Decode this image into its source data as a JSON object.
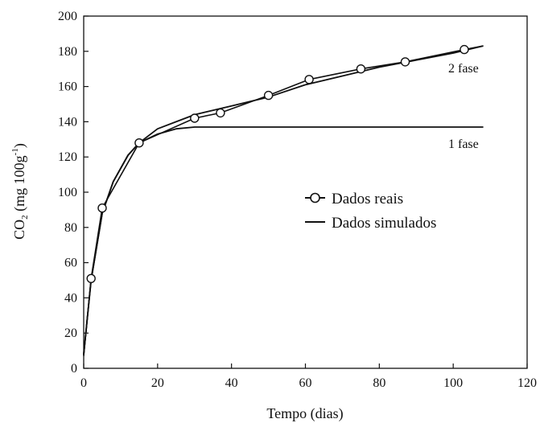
{
  "chart_data": {
    "type": "line",
    "title": "",
    "xlabel": "Tempo (dias)",
    "ylabel_parts": [
      "CO",
      "2",
      " (mg 100g",
      "-1",
      ")"
    ],
    "xlim": [
      0,
      120
    ],
    "ylim": [
      0,
      200
    ],
    "xticks": [
      0,
      20,
      40,
      60,
      80,
      100,
      120
    ],
    "yticks": [
      0,
      20,
      40,
      60,
      80,
      100,
      120,
      140,
      160,
      180,
      200
    ],
    "grid": false,
    "legend_position": "center-right",
    "legend": [
      "Dados reais",
      "Dados simulados"
    ],
    "annotations": [
      "2 fase",
      "1 fase"
    ],
    "series": [
      {
        "name": "Dados reais",
        "style": "line-with-circle-markers",
        "points": [
          [
            0,
            7
          ],
          [
            2,
            51
          ],
          [
            5,
            91
          ],
          [
            15,
            128
          ],
          [
            30,
            142
          ],
          [
            37,
            145
          ],
          [
            50,
            155
          ],
          [
            61,
            164
          ],
          [
            75,
            170
          ],
          [
            87,
            174
          ],
          [
            103,
            181
          ],
          [
            108,
            183
          ]
        ],
        "markers": [
          [
            2,
            51
          ],
          [
            5,
            91
          ],
          [
            15,
            128
          ],
          [
            30,
            142
          ],
          [
            37,
            145
          ],
          [
            50,
            155
          ],
          [
            61,
            164
          ],
          [
            75,
            170
          ],
          [
            87,
            174
          ],
          [
            103,
            181
          ]
        ]
      },
      {
        "name": "Dados simulados",
        "style": "line",
        "segments": [
          {
            "label": "2 fase",
            "points": [
              [
                0,
                8
              ],
              [
                2,
                50
              ],
              [
                5,
                88
              ],
              [
                8,
                106
              ],
              [
                12,
                121
              ],
              [
                15,
                128
              ],
              [
                20,
                136
              ],
              [
                25,
                140
              ],
              [
                30,
                144
              ],
              [
                40,
                149
              ],
              [
                50,
                154
              ],
              [
                60,
                161
              ],
              [
                70,
                166
              ],
              [
                80,
                171
              ],
              [
                90,
                175
              ],
              [
                100,
                179
              ],
              [
                108,
                183
              ]
            ]
          },
          {
            "label": "1 fase",
            "points": [
              [
                0,
                8
              ],
              [
                2,
                50
              ],
              [
                5,
                88
              ],
              [
                8,
                106
              ],
              [
                12,
                121
              ],
              [
                15,
                128
              ],
              [
                20,
                133
              ],
              [
                25,
                136
              ],
              [
                30,
                137
              ],
              [
                108,
                137
              ]
            ]
          }
        ]
      }
    ]
  }
}
